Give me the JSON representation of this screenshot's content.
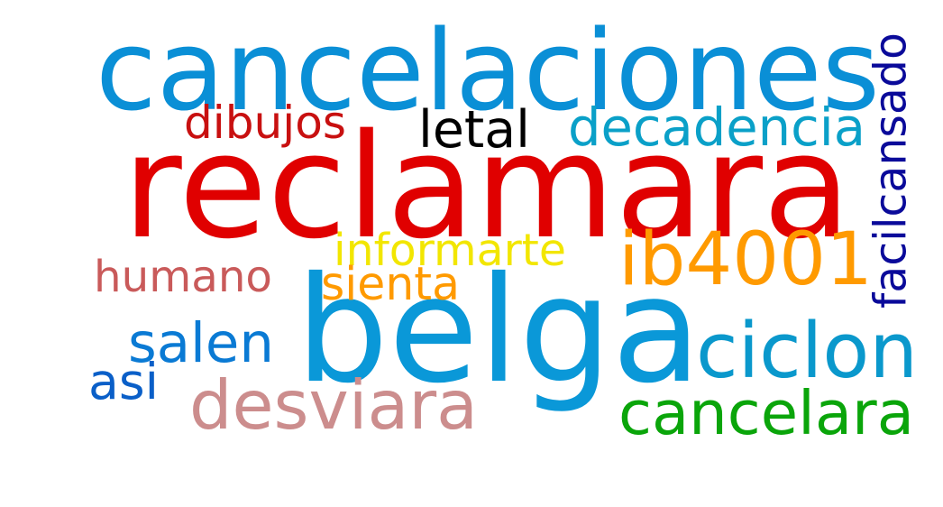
{
  "word_cloud": {
    "words": [
      {
        "key": "reclamara",
        "text": "reclamara",
        "color": "#e00000"
      },
      {
        "key": "belga",
        "text": "belga",
        "color": "#0a98d8"
      },
      {
        "key": "cancelaciones",
        "text": "cancelaciones",
        "color": "#0a8fd6"
      },
      {
        "key": "ib4001",
        "text": "ib4001",
        "color": "#ff9a00"
      },
      {
        "key": "desviara",
        "text": "desviara",
        "color": "#cc8d8d"
      },
      {
        "key": "ciclon",
        "text": "ciclon",
        "color": "#0a98cc"
      },
      {
        "key": "cancelara",
        "text": "cancelara",
        "color": "#0aa50a"
      },
      {
        "key": "decadencia",
        "text": "decadencia",
        "color": "#0aa0c8"
      },
      {
        "key": "humano",
        "text": "humano",
        "color": "#c95a5a"
      },
      {
        "key": "salen",
        "text": "salen",
        "color": "#0a7ad4"
      },
      {
        "key": "facilcansado",
        "text": "facilcansado",
        "color": "#0a0a9a"
      },
      {
        "key": "dibujos",
        "text": "dibujos",
        "color": "#c81010"
      },
      {
        "key": "letal",
        "text": "letal",
        "color": "#000000"
      },
      {
        "key": "informarte",
        "text": "informarte",
        "color": "#f2e600"
      },
      {
        "key": "sienta",
        "text": "sienta",
        "color": "#ff9a00"
      },
      {
        "key": "asi",
        "text": "asi",
        "color": "#0a5fc8"
      }
    ]
  }
}
